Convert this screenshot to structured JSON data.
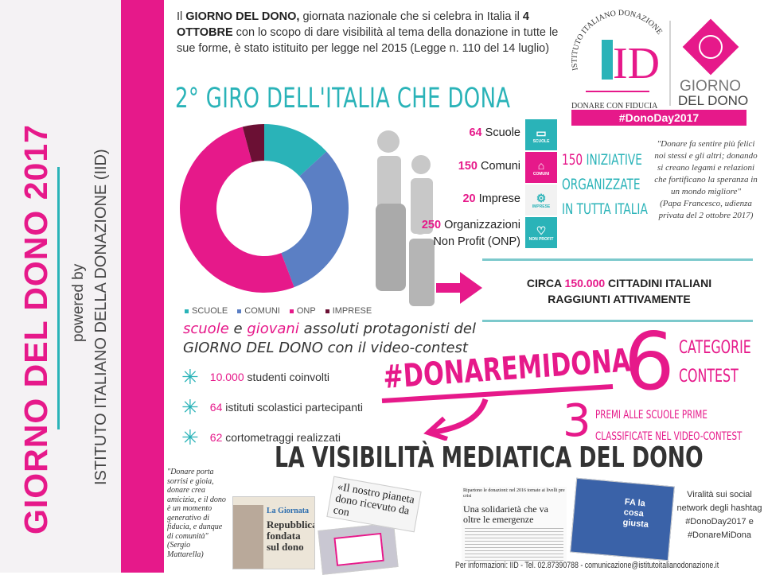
{
  "sidebar": {
    "title": "GIORNO DEL DONO 2017",
    "powered_by": "powered by",
    "organization": "ISTITUTO ITALIANO DELLA DONAZIONE (IID)"
  },
  "intro": {
    "p1": "Il ",
    "b1": "GIORNO DEL DONO,",
    "p2": " giornata nazionale che si celebra in Italia il ",
    "b2": "4 OTTOBRE",
    "p3": " con lo scopo di dare visibilità al tema della donazione in tutte le sue forme",
    "p4": ", è stato istituito per legge nel 2015 (Legge n. 110 del 14 luglio)"
  },
  "logo": {
    "arc_text": "ISTITUTO ITALIANO DONAZIONE",
    "monogram": "ID",
    "tagline": "DONARE CON FIDUCIA",
    "giorno": "GIORNO",
    "del_dono": "DEL DONO",
    "hashtag": "#DonoDay2017"
  },
  "heading": "2° GIRO DELL'ITALIA CHE DONA",
  "chart_data": {
    "type": "pie",
    "donut": true,
    "categories": [
      "SCUOLE",
      "COMUNI",
      "ONP",
      "IMPRESE"
    ],
    "values": [
      64,
      150,
      250,
      20
    ],
    "colors": [
      "#2ab3b8",
      "#5b7fc4",
      "#e6198a",
      "#6b1034"
    ],
    "legend": "bottom"
  },
  "stats": [
    {
      "num": "64",
      "label": "Scuole",
      "icon": "book-icon",
      "caption": "SCUOLE",
      "color": "#2ab3b8"
    },
    {
      "num": "150",
      "label": "Comuni",
      "icon": "building-icon",
      "caption": "COMUNI",
      "color": "#e6198a"
    },
    {
      "num": "20",
      "label": "Imprese",
      "icon": "gears-icon",
      "caption": "IMPRESE",
      "color": "#f2f2f2"
    },
    {
      "num": "250",
      "label": "Organizzazioni Non Profit (ONP)",
      "icon": "heart-icon",
      "caption": "NON PROFIT",
      "color": "#2ab3b8"
    }
  ],
  "iniziative": {
    "num": "150",
    "l1": "INIZIATIVE",
    "l2": "ORGANIZZATE",
    "l3": "IN TUTTA ITALIA"
  },
  "papa_quote": {
    "text": "\"Donare fa sentire più felici noi stessi e gli altri; donando si creano legami e relazioni che fortificano la speranza in un mondo migliore\"",
    "author": "(Papa Francesco, udienza privata del 2 ottobre 2017)"
  },
  "circa": {
    "pre": "CIRCA ",
    "num": "150.000",
    "post": " CITTADINI ITALIANI",
    "l2": "RAGGIUNTI ATTIVAMENTE"
  },
  "protagonisti": {
    "w1": "scuole",
    "w2": " e ",
    "w3": "giovani",
    "w4": " assoluti protagonisti del",
    "l2": "GIORNO DEL DONO con il video-contest"
  },
  "bullets": [
    {
      "num": "10.000",
      "text": " studenti coinvolti"
    },
    {
      "num": "64",
      "text": " istituti scolastici partecipanti"
    },
    {
      "num": "62",
      "text": " cortometraggi realizzati"
    }
  ],
  "contest": {
    "hashtag": "#DONAREMIDONA",
    "six": "6",
    "cat1": "CATEGORIE",
    "cat2": "CONTEST",
    "three": "3",
    "premi1": "PREMI ALLE SCUOLE PRIME",
    "premi2": "CLASSIFICATE NEL VIDEO-CONTEST"
  },
  "media": {
    "title": "LA VISIBILITÀ MEDIATICA DEL DONO",
    "mattarella": "\"Donare porta sorrisi e gioia, donare crea amicizia, e il dono è un momento generativo di fiducia, e dunque di comunità\"",
    "mattarella_author": "(Sergio Mattarella)",
    "clip1_kicker": "La Giornata",
    "clip1_head": "Repubblica fondata sul dono",
    "clip2_head": "«Il nostro pianeta dono ricevuto da con",
    "clip3_kicker": "Ripartono le donazioni: nel 2016 tornate ai livelli pre crisi",
    "clip3_head": "Una solidarietà che va oltre le emergenze",
    "clip4_head": "FA la cosa giusta",
    "viral": "Viralità sui social network degli hashtag #DonoDay2017 e #DonareMiDona"
  },
  "footer": "Per informazioni: IID - Tel. 02.87390788 - comunicazione@istitutoitalianodonazione.it"
}
